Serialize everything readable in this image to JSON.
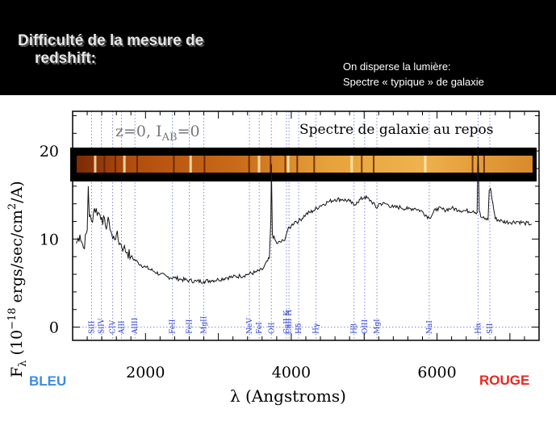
{
  "slide": {
    "title_line1": "Difficulté de la mesure de",
    "title_line2": "redshift:",
    "note_line1": "On disperse la lumière:",
    "note_line2": "Spectre « typique » de galaxie",
    "label_blue": "BLEU",
    "label_red": "ROUGE"
  },
  "colors": {
    "banner": "#000000",
    "blue_label": "#3d8be0",
    "red_label": "#e8271e",
    "line_markers": "#7b86e6"
  },
  "chart_data": {
    "type": "line",
    "title": "Spectre de galaxie au repos",
    "annotation": "z=0, I_AB=0",
    "annotation_main": "z=0,  I",
    "annotation_sub": "AB",
    "annotation_tail": "=0",
    "xlabel": "λ (Angstroms)",
    "ylabel_main": "F",
    "ylabel_sub": "λ",
    "ylabel_rest": " (10",
    "ylabel_exp": "−18",
    "ylabel_tail": " ergs/sec/cm",
    "ylabel_exp2": "2",
    "ylabel_end": "/A)",
    "xlim": [
      1000,
      7400
    ],
    "ylim": [
      -1.5,
      24.5
    ],
    "xticks": [
      2000,
      4000,
      6000
    ],
    "xtick_labels": [
      "2000",
      "4000",
      "6000"
    ],
    "yticks": [
      0,
      10,
      20
    ],
    "ytick_labels": [
      "0",
      "10",
      "20"
    ],
    "grid": false,
    "x": [
      1050,
      1100,
      1150,
      1200,
      1215,
      1230,
      1260,
      1300,
      1350,
      1400,
      1450,
      1500,
      1550,
      1600,
      1650,
      1700,
      1750,
      1800,
      1900,
      2000,
      2100,
      2200,
      2300,
      2400,
      2500,
      2600,
      2700,
      2800,
      2900,
      3000,
      3100,
      3200,
      3300,
      3400,
      3500,
      3600,
      3700,
      3720,
      3727,
      3740,
      3800,
      3900,
      3950,
      4000,
      4050,
      4100,
      4200,
      4300,
      4400,
      4500,
      4600,
      4700,
      4800,
      4861,
      4900,
      5007,
      5100,
      5175,
      5200,
      5300,
      5400,
      5500,
      5600,
      5700,
      5800,
      5893,
      6000,
      6100,
      6200,
      6300,
      6400,
      6500,
      6550,
      6563,
      6580,
      6600,
      6650,
      6700,
      6716,
      6731,
      6800,
      6900,
      7000,
      7100,
      7200,
      7300
    ],
    "y": [
      9.5,
      10.5,
      9.0,
      11.0,
      16.0,
      12.5,
      12.0,
      13.5,
      13.0,
      12.5,
      11.5,
      12.0,
      10.0,
      10.5,
      9.5,
      9.0,
      8.5,
      8.0,
      7.3,
      6.8,
      6.4,
      6.0,
      5.7,
      5.6,
      5.4,
      5.3,
      5.2,
      5.2,
      5.3,
      5.4,
      5.6,
      5.7,
      5.8,
      6.0,
      6.2,
      6.5,
      7.8,
      12.0,
      18.5,
      10.5,
      9.5,
      9.8,
      11.0,
      11.5,
      12.0,
      12.0,
      12.8,
      13.2,
      13.8,
      14.2,
      14.5,
      14.5,
      14.3,
      13.8,
      14.2,
      14.8,
      14.3,
      13.5,
      14.0,
      14.0,
      13.6,
      13.6,
      13.4,
      13.5,
      13.1,
      12.4,
      13.5,
      13.3,
      13.5,
      13.3,
      13.2,
      13.2,
      13.0,
      20.5,
      13.2,
      12.5,
      12.3,
      12.2,
      15.5,
      15.8,
      12.3,
      12.0,
      11.9,
      12.0,
      11.8,
      11.7
    ],
    "lines": [
      {
        "label": "SiII",
        "wavelength": 1260
      },
      {
        "label": "SiIV",
        "wavelength": 1395
      },
      {
        "label": "CIV",
        "wavelength": 1549
      },
      {
        "label": "AlII",
        "wavelength": 1670
      },
      {
        "label": "AlIII",
        "wavelength": 1855
      },
      {
        "label": "FeII",
        "wavelength": 2370
      },
      {
        "label": "FeII",
        "wavelength": 2600
      },
      {
        "label": "MgII",
        "wavelength": 2800
      },
      {
        "label": "NeV",
        "wavelength": 3426
      },
      {
        "label": "FeI",
        "wavelength": 3560
      },
      {
        "label": "OII",
        "wavelength": 3727
      },
      {
        "label": "CaII K",
        "wavelength": 3934
      },
      {
        "label": "CaII H",
        "wavelength": 3969
      },
      {
        "label": "Hδ",
        "wavelength": 4102
      },
      {
        "label": "Hγ",
        "wavelength": 4340
      },
      {
        "label": "Hβ",
        "wavelength": 4861
      },
      {
        "label": "OIII",
        "wavelength": 5007
      },
      {
        "label": "MgI",
        "wavelength": 5175
      },
      {
        "label": "NaI",
        "wavelength": 5893
      },
      {
        "label": "Hα",
        "wavelength": 6563
      },
      {
        "label": "SII",
        "wavelength": 6725
      }
    ]
  }
}
